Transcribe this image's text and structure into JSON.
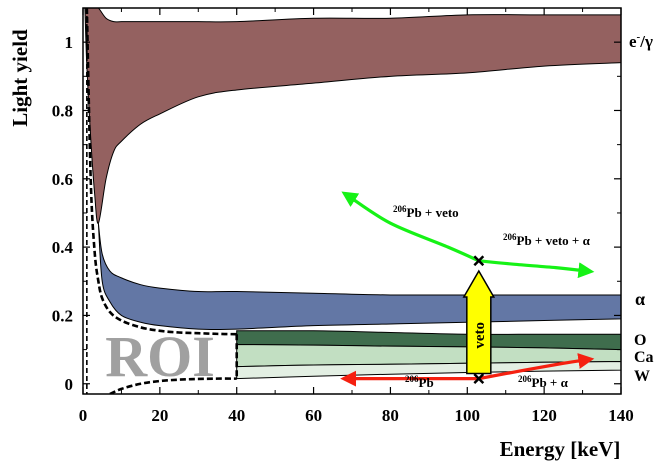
{
  "chart_data": {
    "type": "area",
    "xlabel": "Energy [keV]",
    "ylabel": "Light yield",
    "xlim": [
      0,
      140
    ],
    "ylim": [
      -0.03,
      1.1
    ],
    "x_ticks": [
      0,
      20,
      40,
      60,
      80,
      100,
      120,
      140
    ],
    "y_ticks": [
      0,
      0.2,
      0.4,
      0.6,
      0.8,
      1
    ],
    "x_tick_labels": [
      "0",
      "20",
      "40",
      "60",
      "80",
      "100",
      "120",
      "140"
    ],
    "y_tick_labels": [
      "0",
      "0.2",
      "0.4",
      "0.6",
      "0.8",
      "1"
    ],
    "colors": {
      "electron_gamma": "#946160",
      "alpha": "#6377a5",
      "oxygen": "#3f6d4d",
      "calcium": "#c2dfc2",
      "tungsten": "#e3efe3",
      "veto_arrow": "#ffff00",
      "green_arrow": "#16f216",
      "red_arrow": "#f52010",
      "roi_text": "#a0a0a0"
    },
    "bands": [
      {
        "label": "e-/γ",
        "label_main": "e",
        "label_sup": "-",
        "label_rest": "/γ",
        "x": [
          0.5,
          1,
          2,
          3,
          4,
          6,
          8,
          10,
          15,
          20,
          30,
          40,
          60,
          80,
          100,
          120,
          140
        ],
        "upper": [
          1.1,
          1.1,
          1.1,
          1.1,
          1.1,
          1.07,
          1.06,
          1.06,
          1.06,
          1.06,
          1.06,
          1.06,
          1.07,
          1.07,
          1.08,
          1.08,
          1.08
        ],
        "lower": [
          1.1,
          0.93,
          0.72,
          0.56,
          0.47,
          0.6,
          0.68,
          0.71,
          0.76,
          0.79,
          0.84,
          0.86,
          0.88,
          0.9,
          0.91,
          0.93,
          0.94
        ]
      },
      {
        "label": "α",
        "x": [
          4,
          5,
          7,
          10,
          15,
          20,
          30,
          40,
          60,
          80,
          100,
          120,
          140
        ],
        "upper": [
          0.47,
          0.38,
          0.33,
          0.31,
          0.29,
          0.28,
          0.27,
          0.27,
          0.265,
          0.26,
          0.26,
          0.26,
          0.26
        ],
        "lower": [
          0.47,
          0.3,
          0.24,
          0.2,
          0.18,
          0.17,
          0.16,
          0.16,
          0.17,
          0.175,
          0.18,
          0.185,
          0.19
        ]
      },
      {
        "label": "O",
        "x": [
          40,
          60,
          80,
          100,
          120,
          140
        ],
        "upper": [
          0.155,
          0.155,
          0.15,
          0.145,
          0.145,
          0.145
        ],
        "lower": [
          0.115,
          0.113,
          0.11,
          0.108,
          0.105,
          0.1
        ]
      },
      {
        "label": "Ca",
        "x": [
          40,
          60,
          80,
          100,
          120,
          140
        ],
        "upper": [
          0.115,
          0.113,
          0.11,
          0.108,
          0.105,
          0.1
        ],
        "lower": [
          0.05,
          0.055,
          0.057,
          0.06,
          0.063,
          0.065
        ]
      },
      {
        "label": "W",
        "x": [
          40,
          60,
          80,
          100,
          120,
          140
        ],
        "upper": [
          0.05,
          0.055,
          0.057,
          0.06,
          0.063,
          0.065
        ],
        "lower": [
          0.015,
          0.022,
          0.028,
          0.033,
          0.037,
          0.04
        ]
      }
    ],
    "roi": {
      "label": "ROI",
      "x_max": 40,
      "upper_curve": {
        "x": [
          1,
          2,
          3,
          4,
          5,
          7,
          10,
          15,
          20,
          25,
          30,
          35,
          40
        ],
        "y": [
          1.1,
          0.6,
          0.39,
          0.3,
          0.25,
          0.21,
          0.185,
          0.165,
          0.155,
          0.15,
          0.148,
          0.146,
          0.145
        ]
      },
      "lower_curve": {
        "x": [
          7,
          10,
          15,
          20,
          25,
          30,
          35,
          40
        ],
        "y": [
          -0.03,
          -0.015,
          0.0,
          0.008,
          0.012,
          0.014,
          0.015,
          0.015
        ]
      },
      "left_boundary_x": 1
    },
    "annotations": {
      "veto_label": "veto",
      "pb_veto": {
        "sup": "206",
        "text": "Pb + veto"
      },
      "pb_veto_alpha": {
        "sup": "206",
        "text": "Pb + veto + α"
      },
      "pb": {
        "sup": "206",
        "text": "Pb"
      },
      "pb_alpha": {
        "sup": "206",
        "text": "Pb + α"
      }
    },
    "markers": [
      {
        "x": 103,
        "y": 0.36
      },
      {
        "x": 103,
        "y": 0.015
      }
    ],
    "arrows": [
      {
        "name": "veto-arrow",
        "from": [
          103,
          0.03
        ],
        "to": [
          103,
          0.33
        ]
      },
      {
        "name": "pb-veto-arrow",
        "points": [
          [
            103,
            0.36
          ],
          [
            95,
            0.4
          ],
          [
            80,
            0.47
          ],
          [
            69,
            0.55
          ]
        ]
      },
      {
        "name": "pb-veto-alpha-arrow",
        "points": [
          [
            103,
            0.36
          ],
          [
            112,
            0.35
          ],
          [
            123,
            0.34
          ],
          [
            131,
            0.33
          ]
        ]
      },
      {
        "name": "pb-arrow",
        "points": [
          [
            103,
            0.015
          ],
          [
            90,
            0.015
          ],
          [
            78,
            0.015
          ],
          [
            69,
            0.015
          ]
        ]
      },
      {
        "name": "pb-alpha-arrow",
        "points": [
          [
            103,
            0.015
          ],
          [
            115,
            0.04
          ],
          [
            125,
            0.06
          ],
          [
            131,
            0.07
          ]
        ]
      }
    ]
  }
}
